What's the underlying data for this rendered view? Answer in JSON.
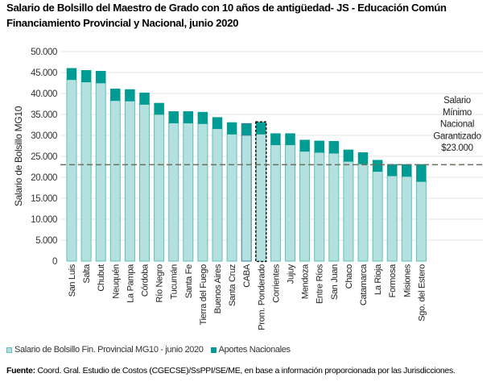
{
  "title_line1": "Salario de Bolsillo del Maestro de Grado con 10 años de antigüedad- JS - Educación Común",
  "title_line2": "Financiamiento Provincial y Nacional, junio 2020",
  "colors": {
    "provincial": "#b4e1df",
    "provincial_border": "#5fc0bb",
    "nacional": "#009b93",
    "caba_border": "#3a7fa0",
    "grid": "#e4e4e4",
    "dashed_line": "#6e6e5e"
  },
  "chart_data": {
    "type": "bar",
    "stacked": true,
    "title": "Salario de Bolsillo del Maestro de Grado con 10 años de antigüedad- JS - Educación Común Financiamiento Provincial y Nacional, junio 2020",
    "xlabel": "",
    "ylabel": "Salario de Bolsillo MG10",
    "ylim": [
      0,
      50000
    ],
    "yticks": [
      0,
      5000,
      10000,
      15000,
      20000,
      25000,
      30000,
      35000,
      40000,
      45000,
      50000
    ],
    "ytick_labels": [
      "0",
      "5.000",
      "10.000",
      "15.000",
      "20.000",
      "25.000",
      "30.000",
      "35.000",
      "40.000",
      "45.000",
      "50.000"
    ],
    "grid": true,
    "legend_position": "bottom-left",
    "categories": [
      "San Luis",
      "Salta",
      "Chubut",
      "Neuquén",
      "La Pampa",
      "Córdoba",
      "Río Negro",
      "Tucumán",
      "Santa Fe",
      "Tierra del Fuego",
      "Buenos Aires",
      "Santa Cruz",
      "CABA",
      "Prom. Ponderado",
      "Corrientes",
      "Jujuy",
      "Mendoza",
      "Entre Ríos",
      "San Juan",
      "Chaco",
      "Catamarca",
      "La Rioja",
      "Formosa",
      "Misiones",
      "Sgo. del Estero"
    ],
    "highlighted_category": "Prom. Ponderado",
    "series": [
      {
        "name": "Salario de Bolsillo Fin. Provincial  MG10 - junio 2020",
        "values": [
          43300,
          42750,
          42500,
          38300,
          38200,
          37400,
          35000,
          32950,
          32950,
          32800,
          31600,
          30300,
          30050,
          30300,
          27750,
          27750,
          26200,
          25950,
          25750,
          23800,
          23200,
          21400,
          20350,
          20200,
          19000
        ]
      },
      {
        "name": "Aportes Nacionales",
        "values": [
          2700,
          2770,
          2830,
          2800,
          2760,
          2760,
          2700,
          2750,
          2750,
          2750,
          2700,
          2780,
          2770,
          2840,
          2700,
          2700,
          2700,
          2730,
          2850,
          2750,
          2700,
          2700,
          2730,
          2880,
          4080
        ]
      }
    ],
    "reference_line": {
      "value": 23000,
      "label_lines": [
        "Salario",
        "Mínimo",
        "Nacional",
        "Garantizado",
        "$23.000"
      ]
    }
  },
  "legend": {
    "items": [
      "Salario de Bolsillo Fin. Provincial  MG10 - junio 2020",
      "Aportes Nacionales"
    ]
  },
  "footer": {
    "label": "Fuente:",
    "text": " Coord. Gral. Estudio de Costos (CGECSE)/SsPPI/SE/ME, en base a información proporcionada por las Jurisdicciones."
  }
}
